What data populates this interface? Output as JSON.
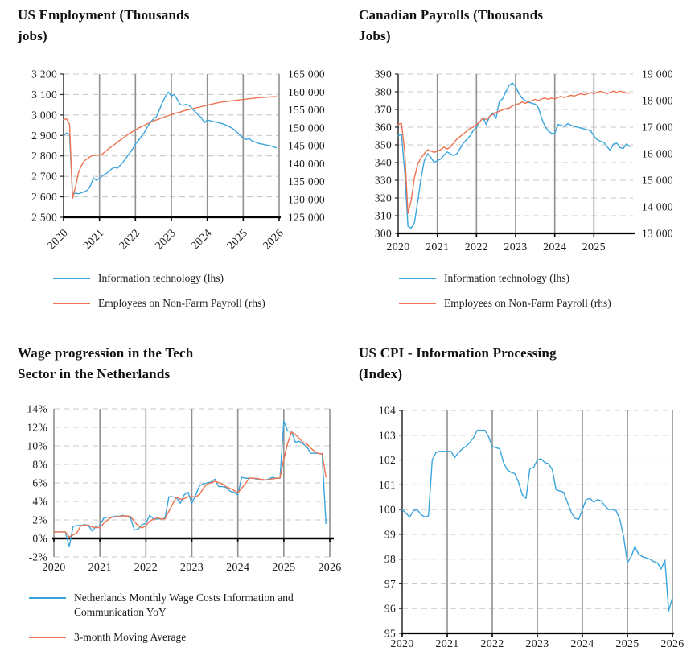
{
  "colors": {
    "blue": "#3AA5DC",
    "orange": "#EC7450"
  },
  "chart_data": [
    {
      "type": "line",
      "title": "US Employment (Thousands jobs)",
      "title_lines": [
        "US Employment (Thousands",
        "jobs)"
      ],
      "x_range": [
        2020,
        2026
      ],
      "grid_years": [
        2021,
        2022,
        2023,
        2024,
        2025,
        2026
      ],
      "x_tick_labels": [
        {
          "label": "2020",
          "year": 2020
        },
        {
          "label": "2021",
          "year": 2021
        },
        {
          "label": "2022",
          "year": 2022
        },
        {
          "label": "2023",
          "year": 2023
        },
        {
          "label": "2024",
          "year": 2024
        },
        {
          "label": "2025",
          "year": 2025
        },
        {
          "label": "2026",
          "year": 2026
        }
      ],
      "y_left": {
        "min": 2500,
        "max": 3200,
        "ticks": [
          {
            "label": "3 200",
            "v": 3200
          },
          {
            "label": "3 100",
            "v": 3100
          },
          {
            "label": "3 000",
            "v": 3000
          },
          {
            "label": "2 900",
            "v": 2900
          },
          {
            "label": "2 800",
            "v": 2800
          },
          {
            "label": "2 700",
            "v": 2700
          },
          {
            "label": "2 600",
            "v": 2600
          },
          {
            "label": "2 500",
            "v": 2500
          }
        ]
      },
      "y_right": {
        "min": 125000,
        "max": 165000,
        "labels": [
          "165 000",
          "160 000",
          "155 000",
          "150 000",
          "145 000",
          "140 000",
          "135 000",
          "130 000",
          "125 000"
        ]
      },
      "series": [
        {
          "name": "Information technology (lhs)",
          "axis": "left",
          "color": "#3AA5DC",
          "x0": 2020,
          "values": [
            2900,
            2912,
            2905,
            2612,
            2618,
            2615,
            2620,
            2625,
            2632,
            2655,
            2692,
            2680,
            2690,
            2703,
            2712,
            2722,
            2736,
            2744,
            2740,
            2755,
            2772,
            2792,
            2812,
            2832,
            2858,
            2875,
            2895,
            2915,
            2942,
            2965,
            2980,
            2992,
            3025,
            3060,
            3090,
            3112,
            3092,
            3100,
            3075,
            3050,
            3048,
            3052,
            3046,
            3030,
            3015,
            3000,
            2988,
            2962,
            2975,
            2972,
            2968,
            2965,
            2962,
            2958,
            2952,
            2945,
            2938,
            2928,
            2915,
            2900,
            2888,
            2880,
            2885,
            2872,
            2868,
            2862,
            2858,
            2856,
            2852,
            2850,
            2845,
            2840
          ]
        },
        {
          "name": "Employees on Non-Farm Payroll (rhs)",
          "axis": "right",
          "color": "#EC7450",
          "x0": 2020,
          "values": [
            152300,
            152500,
            151000,
            130300,
            133500,
            137500,
            139500,
            140800,
            141400,
            142000,
            142300,
            142400,
            142300,
            142700,
            143400,
            144100,
            144700,
            145300,
            146000,
            146600,
            147200,
            147800,
            148400,
            148900,
            149400,
            149900,
            150300,
            150700,
            151100,
            151500,
            151900,
            152200,
            152500,
            152800,
            153100,
            153400,
            153700,
            154000,
            154200,
            154400,
            154700,
            154900,
            155100,
            155300,
            155500,
            155700,
            155900,
            156100,
            156300,
            156500,
            156700,
            156900,
            157050,
            157200,
            157300,
            157400,
            157500,
            157600,
            157700,
            157800,
            157900,
            158000,
            158100,
            158200,
            158300,
            158400,
            158450,
            158500,
            158550,
            158600,
            158650,
            158700
          ]
        }
      ],
      "legend": [
        {
          "label": "Information technology (lhs)",
          "color": "#3AA5DC"
        },
        {
          "label": "Employees on Non-Farm Payroll (rhs)",
          "color": "#EC7450"
        }
      ]
    },
    {
      "type": "line",
      "title": "Canadian Payrolls (Thousands Jobs)",
      "title_lines": [
        "Canadian Payrolls (Thousands",
        "Jobs)"
      ],
      "x_range": [
        2020,
        2026
      ],
      "grid_years": [
        2021,
        2022,
        2023,
        2024,
        2025
      ],
      "x_tick_labels": [
        {
          "label": "2020",
          "year": 2020
        },
        {
          "label": "2021",
          "year": 2021
        },
        {
          "label": "2022",
          "year": 2022
        },
        {
          "label": "2023",
          "year": 2023
        },
        {
          "label": "2024",
          "year": 2024
        },
        {
          "label": "2025",
          "year": 2025
        }
      ],
      "y_left": {
        "min": 300,
        "max": 390,
        "ticks": [
          {
            "label": "390",
            "v": 390
          },
          {
            "label": "380",
            "v": 380
          },
          {
            "label": "370",
            "v": 370
          },
          {
            "label": "360",
            "v": 360
          },
          {
            "label": "350",
            "v": 350
          },
          {
            "label": "340",
            "v": 340
          },
          {
            "label": "330",
            "v": 330
          },
          {
            "label": "320",
            "v": 320
          },
          {
            "label": "310",
            "v": 310
          },
          {
            "label": "300",
            "v": 300
          }
        ]
      },
      "y_right": {
        "min": 13000,
        "max": 19000,
        "labels": [
          "19 000",
          "18 000",
          "17 000",
          "16 000",
          "15 000",
          "14 000",
          "13 000"
        ]
      },
      "series": [
        {
          "name": "Information technology (lhs)",
          "axis": "left",
          "color": "#3AA5DC",
          "x0": 2020,
          "values": [
            355,
            356,
            335,
            304,
            303,
            306,
            318,
            331,
            341,
            345,
            343,
            340,
            341,
            342,
            344,
            346,
            345,
            344,
            345,
            348,
            351,
            353,
            355,
            358,
            360,
            363,
            365.5,
            361.5,
            366,
            368,
            365,
            374.5,
            376,
            380,
            383.5,
            385,
            383,
            379,
            376.5,
            375,
            374,
            373.5,
            373,
            371,
            365,
            360.5,
            358,
            356.5,
            356.5,
            361.5,
            361,
            360.5,
            362,
            361,
            360.5,
            360,
            359.5,
            359,
            358.5,
            358,
            355,
            353,
            352,
            351.5,
            349,
            347,
            350.5,
            351,
            348.5,
            348,
            350.5,
            349
          ]
        },
        {
          "name": "Employees on Non-Farm Payroll (rhs)",
          "axis": "right",
          "color": "#EC7450",
          "x0": 2020,
          "values": [
            17100,
            17150,
            16100,
            13750,
            14250,
            15100,
            15600,
            15850,
            16000,
            16150,
            16100,
            16050,
            16100,
            16150,
            16250,
            16175,
            16250,
            16400,
            16550,
            16650,
            16750,
            16850,
            16950,
            17000,
            17100,
            17200,
            17350,
            17280,
            17400,
            17480,
            17550,
            17600,
            17650,
            17700,
            17720,
            17800,
            17850,
            17880,
            17950,
            17900,
            17950,
            18000,
            18050,
            18000,
            18060,
            18100,
            18050,
            18100,
            18060,
            18120,
            18160,
            18110,
            18160,
            18200,
            18170,
            18220,
            18260,
            18220,
            18260,
            18300,
            18260,
            18310,
            18350,
            18300,
            18260,
            18310,
            18360,
            18310,
            18360,
            18320,
            18280,
            18290
          ]
        }
      ],
      "legend": [
        {
          "label": "Information technology (lhs)",
          "color": "#3AA5DC"
        },
        {
          "label": "Employees on Non-Farm Payroll (rhs)",
          "color": "#EC7450"
        }
      ]
    },
    {
      "type": "line",
      "title": "Wage progression in the Tech Sector in the Netherlands",
      "title_lines": [
        "Wage progression in the Tech",
        "Sector in the Netherlands"
      ],
      "x_range": [
        2020,
        2026
      ],
      "grid_years": [
        2020,
        2021,
        2022,
        2023,
        2024,
        2025,
        2026
      ],
      "x_tick_labels": [
        {
          "label": "2020",
          "year": 2020
        },
        {
          "label": "2021",
          "year": 2021
        },
        {
          "label": "2022",
          "year": 2022
        },
        {
          "label": "2023",
          "year": 2023
        },
        {
          "label": "2024",
          "year": 2024
        },
        {
          "label": "2025",
          "year": 2025
        },
        {
          "label": "2026",
          "year": 2026
        }
      ],
      "y_left": {
        "min": -2,
        "max": 14,
        "ticks": [
          {
            "label": "14%",
            "v": 14
          },
          {
            "label": "12%",
            "v": 12
          },
          {
            "label": "10%",
            "v": 10
          },
          {
            "label": "8%",
            "v": 8
          },
          {
            "label": "6%",
            "v": 6
          },
          {
            "label": "4%",
            "v": 4
          },
          {
            "label": "2%",
            "v": 2
          },
          {
            "label": "0%",
            "v": 0
          },
          {
            "label": "-2%",
            "v": -2
          }
        ]
      },
      "y_right": null,
      "series": [
        {
          "name": "Netherlands Monthly Wage Costs Information and Communication YoY",
          "axis": "left",
          "color": "#3AA5DC",
          "x0": 2020,
          "values": [
            0.7,
            0.7,
            0.7,
            0.7,
            -0.9,
            1.3,
            1.4,
            1.4,
            1.5,
            1.4,
            0.8,
            1.3,
            1.4,
            2.2,
            2.3,
            2.3,
            2.4,
            2.4,
            2.5,
            2.4,
            2.2,
            0.9,
            1.0,
            1.5,
            1.6,
            2.5,
            2.1,
            2.1,
            2.1,
            2.2,
            4.5,
            4.5,
            4.4,
            3.8,
            4.7,
            5.0,
            3.8,
            4.7,
            5.7,
            5.9,
            6.0,
            6.1,
            6.4,
            5.6,
            5.6,
            5.5,
            5.1,
            5.0,
            4.7,
            6.6,
            6.5,
            6.5,
            6.5,
            6.4,
            6.3,
            6.3,
            6.4,
            6.6,
            6.5,
            6.5,
            12.7,
            11.6,
            11.6,
            10.4,
            10.5,
            10.2,
            9.9,
            9.2,
            9.2,
            9.2,
            9.1,
            1.6
          ]
        },
        {
          "name": "3-month Moving Average",
          "axis": "left",
          "color": "#EC7450",
          "x0": 2020,
          "values": [
            0.7,
            0.7,
            0.7,
            0.7,
            0.17,
            0.37,
            0.6,
            1.37,
            1.43,
            1.43,
            1.23,
            1.17,
            1.17,
            1.63,
            1.97,
            2.27,
            2.33,
            2.37,
            2.43,
            2.43,
            2.37,
            1.83,
            1.37,
            1.13,
            1.37,
            1.87,
            2.07,
            2.23,
            2.1,
            2.13,
            2.93,
            3.73,
            4.47,
            4.23,
            4.3,
            4.5,
            4.5,
            4.5,
            4.73,
            5.43,
            5.87,
            6.0,
            6.17,
            6.03,
            5.87,
            5.57,
            5.4,
            5.2,
            4.93,
            5.43,
            5.93,
            6.53,
            6.5,
            6.47,
            6.4,
            6.33,
            6.33,
            6.43,
            6.5,
            6.53,
            8.57,
            10.27,
            11.5,
            11.23,
            10.83,
            10.37,
            10.2,
            9.77,
            9.43,
            9.17,
            9.17,
            6.63
          ]
        }
      ],
      "legend": [
        {
          "label": "Netherlands Monthly Wage Costs Information and Communication YoY",
          "color": "#3AA5DC"
        },
        {
          "label": "3-month Moving Average",
          "color": "#EC7450"
        }
      ]
    },
    {
      "type": "line",
      "title": "US CPI - Information Processing (Index)",
      "title_lines": [
        "US CPI - Information Processing",
        "(Index)"
      ],
      "x_range": [
        2020,
        2026
      ],
      "grid_years": [
        2021,
        2022,
        2023,
        2024,
        2025,
        2026
      ],
      "x_tick_labels": [
        {
          "label": "2020",
          "year": 2020
        },
        {
          "label": "2021",
          "year": 2021
        },
        {
          "label": "2022",
          "year": 2022
        },
        {
          "label": "2023",
          "year": 2023
        },
        {
          "label": "2024",
          "year": 2024
        },
        {
          "label": "2025",
          "year": 2025
        },
        {
          "label": "2026",
          "year": 2026
        }
      ],
      "y_left": {
        "min": 95,
        "max": 104,
        "ticks": [
          {
            "label": "104",
            "v": 104
          },
          {
            "label": "103",
            "v": 103
          },
          {
            "label": "102",
            "v": 102
          },
          {
            "label": "101",
            "v": 101
          },
          {
            "label": "100",
            "v": 100
          },
          {
            "label": "99",
            "v": 99
          },
          {
            "label": "98",
            "v": 98
          },
          {
            "label": "97",
            "v": 97
          },
          {
            "label": "96",
            "v": 96
          },
          {
            "label": "95",
            "v": 95
          }
        ]
      },
      "y_right": null,
      "series": [
        {
          "name": "US CPI - Information Processing",
          "axis": "left",
          "color": "#3AA5DC",
          "x0": 2020,
          "values": [
            100.0,
            99.85,
            99.7,
            99.95,
            100.0,
            99.8,
            99.7,
            99.75,
            102.0,
            102.3,
            102.35,
            102.35,
            102.35,
            102.35,
            102.1,
            102.3,
            102.45,
            102.55,
            102.7,
            102.9,
            103.2,
            103.2,
            103.2,
            102.95,
            102.55,
            102.5,
            102.45,
            101.9,
            101.6,
            101.5,
            101.45,
            101.1,
            100.6,
            100.45,
            101.65,
            101.7,
            102.0,
            102.05,
            101.9,
            101.85,
            101.6,
            100.8,
            100.75,
            100.7,
            100.3,
            99.9,
            99.65,
            99.6,
            100.0,
            100.4,
            100.45,
            100.3,
            100.4,
            100.35,
            100.15,
            100.0,
            100.0,
            99.95,
            99.6,
            98.9,
            97.85,
            98.1,
            98.5,
            98.2,
            98.1,
            98.05,
            98.0,
            97.9,
            97.85,
            97.6,
            97.95,
            95.9,
            96.45
          ]
        }
      ],
      "legend": null
    }
  ]
}
